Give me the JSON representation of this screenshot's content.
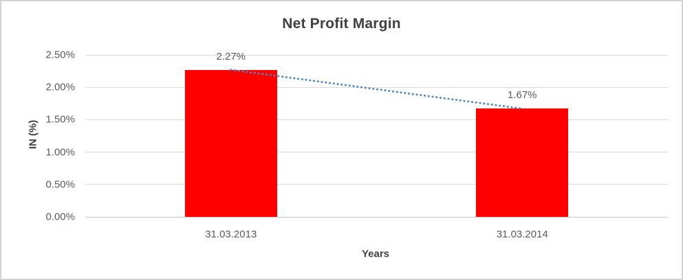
{
  "window": {
    "background": "#ffffff",
    "border_color": "#d2d2d2"
  },
  "chart_data": {
    "type": "bar",
    "title": "Net Profit Margin",
    "xlabel": "Years",
    "ylabel": "IN (%)",
    "categories": [
      "31.03.2013",
      "31.03.2014"
    ],
    "values": [
      2.27,
      1.67
    ],
    "data_labels": [
      "2.27%",
      "1.67%"
    ],
    "y_ticks": [
      "2.50%",
      "2.00%",
      "1.50%",
      "1.00%",
      "0.50%",
      "0.00%"
    ],
    "y_tick_values": [
      2.5,
      2.0,
      1.5,
      1.0,
      0.5,
      0.0
    ],
    "ylim": [
      0,
      2.5
    ],
    "grid": true,
    "legend": "none",
    "bar_color": "#ff0000",
    "trendline": {
      "type": "linear",
      "style": "dotted",
      "color": "#4a86c8",
      "points": [
        2.27,
        1.67
      ]
    },
    "colors": {
      "title_text": "#404040",
      "axis_text": "#595959",
      "gridline": "#d9d9d9",
      "axis_line": "#c9c9c9"
    }
  }
}
